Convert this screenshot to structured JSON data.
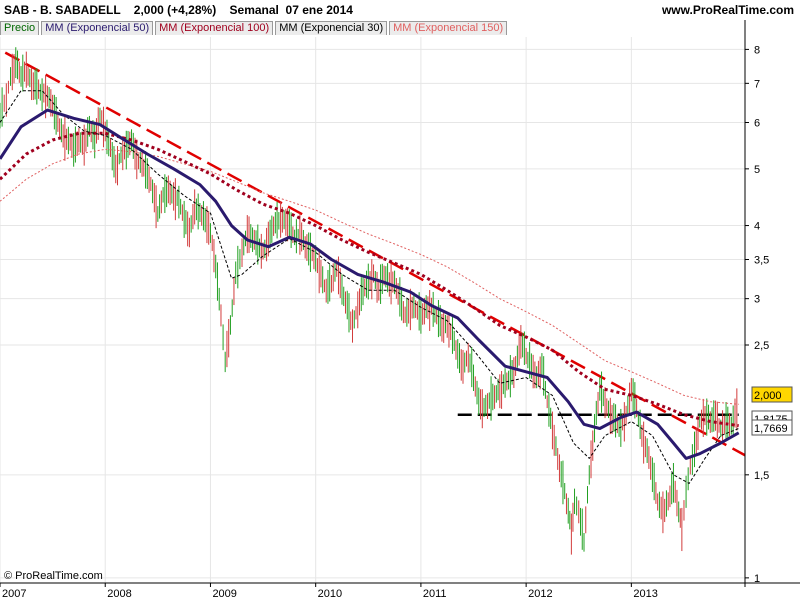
{
  "header": {
    "symbol": "SAB - B. SABADELL",
    "price_change": "2,000 (+4,28%)",
    "period_date": "Semanal  07 ene 2014",
    "site": "www.ProRealTime.com"
  },
  "footer": {
    "copyright": "© ProRealTime.com"
  },
  "price_flags": [
    {
      "label": "2,000",
      "value": 2.0,
      "bg": "#ffd700"
    },
    {
      "label": "1,7669",
      "value": 1.7669,
      "bg": "#ffffff"
    },
    {
      "label": "1,8175",
      "value": 1.8175,
      "bg": "#ffffff"
    }
  ],
  "chart_data": {
    "type": "line",
    "y_scale": "log",
    "ylim": [
      0.98,
      8.4
    ],
    "xlim": [
      2007.0,
      2014.08
    ],
    "grid": true,
    "y_ticks": [
      {
        "value": 8,
        "label": "8"
      },
      {
        "value": 7,
        "label": "7"
      },
      {
        "value": 6,
        "label": "6"
      },
      {
        "value": 5,
        "label": "5"
      },
      {
        "value": 4,
        "label": "4"
      },
      {
        "value": 3.5,
        "label": "3,5"
      },
      {
        "value": 3,
        "label": "3"
      },
      {
        "value": 2.5,
        "label": "2,5"
      },
      {
        "value": 1.5,
        "label": "1,5"
      },
      {
        "value": 1,
        "label": "1"
      }
    ],
    "x_ticks": [
      {
        "value": 2007,
        "label": "2007"
      },
      {
        "value": 2008,
        "label": "2008"
      },
      {
        "value": 2009,
        "label": "2009"
      },
      {
        "value": 2010,
        "label": "2010"
      },
      {
        "value": 2011,
        "label": "2011"
      },
      {
        "value": 2012,
        "label": "2012"
      },
      {
        "value": 2013,
        "label": "2013"
      }
    ],
    "legend": [
      {
        "label": "Precio",
        "color": "#006600"
      },
      {
        "label": "MM (Exponencial 50)",
        "color": "#2a1a6e"
      },
      {
        "label": "MM (Exponencial 100)",
        "color": "#a0001e"
      },
      {
        "label": "MM (Exponencial 30)",
        "color": "#000000"
      },
      {
        "label": "MM (Exponencial 150)",
        "color": "#e06060"
      }
    ],
    "price_closes": [
      [
        2007.0,
        6.2
      ],
      [
        2007.06,
        6.6
      ],
      [
        2007.1,
        7.2
      ],
      [
        2007.15,
        7.6
      ],
      [
        2007.2,
        7.2
      ],
      [
        2007.25,
        7.4
      ],
      [
        2007.3,
        7.0
      ],
      [
        2007.35,
        6.9
      ],
      [
        2007.4,
        6.7
      ],
      [
        2007.45,
        6.7
      ],
      [
        2007.5,
        6.4
      ],
      [
        2007.55,
        6.0
      ],
      [
        2007.6,
        5.7
      ],
      [
        2007.65,
        5.6
      ],
      [
        2007.7,
        5.4
      ],
      [
        2007.75,
        5.6
      ],
      [
        2007.8,
        5.5
      ],
      [
        2007.85,
        5.9
      ],
      [
        2007.9,
        5.6
      ],
      [
        2007.95,
        6.2
      ],
      [
        2008.0,
        5.8
      ],
      [
        2008.05,
        5.4
      ],
      [
        2008.1,
        5.0
      ],
      [
        2008.15,
        5.3
      ],
      [
        2008.2,
        5.4
      ],
      [
        2008.25,
        5.6
      ],
      [
        2008.3,
        5.2
      ],
      [
        2008.35,
        5.1
      ],
      [
        2008.4,
        4.9
      ],
      [
        2008.45,
        4.6
      ],
      [
        2008.5,
        4.2
      ],
      [
        2008.55,
        4.5
      ],
      [
        2008.6,
        4.6
      ],
      [
        2008.65,
        4.5
      ],
      [
        2008.7,
        4.4
      ],
      [
        2008.75,
        4.1
      ],
      [
        2008.8,
        3.9
      ],
      [
        2008.85,
        4.3
      ],
      [
        2008.9,
        4.2
      ],
      [
        2008.95,
        4.1
      ],
      [
        2009.0,
        3.9
      ],
      [
        2009.05,
        3.4
      ],
      [
        2009.1,
        2.8
      ],
      [
        2009.14,
        2.35
      ],
      [
        2009.19,
        2.7
      ],
      [
        2009.24,
        3.3
      ],
      [
        2009.3,
        3.6
      ],
      [
        2009.35,
        3.9
      ],
      [
        2009.4,
        3.8
      ],
      [
        2009.45,
        3.7
      ],
      [
        2009.5,
        3.6
      ],
      [
        2009.55,
        3.8
      ],
      [
        2009.6,
        4.0
      ],
      [
        2009.65,
        4.1
      ],
      [
        2009.7,
        4.1
      ],
      [
        2009.75,
        4.0
      ],
      [
        2009.8,
        3.8
      ],
      [
        2009.85,
        3.9
      ],
      [
        2009.9,
        3.7
      ],
      [
        2009.95,
        3.6
      ],
      [
        2010.0,
        3.5
      ],
      [
        2010.05,
        3.3
      ],
      [
        2010.1,
        3.1
      ],
      [
        2010.15,
        3.2
      ],
      [
        2010.2,
        3.4
      ],
      [
        2010.25,
        3.1
      ],
      [
        2010.3,
        2.9
      ],
      [
        2010.35,
        2.7
      ],
      [
        2010.4,
        2.9
      ],
      [
        2010.45,
        3.1
      ],
      [
        2010.5,
        3.2
      ],
      [
        2010.55,
        3.3
      ],
      [
        2010.6,
        3.1
      ],
      [
        2010.65,
        3.3
      ],
      [
        2010.7,
        3.2
      ],
      [
        2010.75,
        3.2
      ],
      [
        2010.8,
        3.0
      ],
      [
        2010.85,
        2.8
      ],
      [
        2010.9,
        2.9
      ],
      [
        2010.95,
        2.9
      ],
      [
        2011.0,
        2.8
      ],
      [
        2011.05,
        2.9
      ],
      [
        2011.1,
        2.9
      ],
      [
        2011.15,
        2.8
      ],
      [
        2011.2,
        2.7
      ],
      [
        2011.25,
        2.7
      ],
      [
        2011.3,
        2.6
      ],
      [
        2011.35,
        2.4
      ],
      [
        2011.4,
        2.3
      ],
      [
        2011.45,
        2.4
      ],
      [
        2011.5,
        2.2
      ],
      [
        2011.55,
        2.0
      ],
      [
        2011.6,
        1.95
      ],
      [
        2011.65,
        2.0
      ],
      [
        2011.7,
        2.05
      ],
      [
        2011.75,
        2.1
      ],
      [
        2011.8,
        2.15
      ],
      [
        2011.85,
        2.2
      ],
      [
        2011.9,
        2.3
      ],
      [
        2011.95,
        2.55
      ],
      [
        2012.0,
        2.4
      ],
      [
        2012.05,
        2.3
      ],
      [
        2012.1,
        2.2
      ],
      [
        2012.15,
        2.3
      ],
      [
        2012.2,
        2.0
      ],
      [
        2012.25,
        1.8
      ],
      [
        2012.3,
        1.6
      ],
      [
        2012.35,
        1.45
      ],
      [
        2012.4,
        1.3
      ],
      [
        2012.43,
        1.2
      ],
      [
        2012.46,
        1.35
      ],
      [
        2012.5,
        1.3
      ],
      [
        2012.55,
        1.15
      ],
      [
        2012.6,
        1.5
      ],
      [
        2012.65,
        1.8
      ],
      [
        2012.7,
        2.1
      ],
      [
        2012.75,
        2.0
      ],
      [
        2012.8,
        1.9
      ],
      [
        2012.85,
        1.85
      ],
      [
        2012.9,
        1.8
      ],
      [
        2012.95,
        1.9
      ],
      [
        2013.0,
        2.1
      ],
      [
        2013.05,
        1.95
      ],
      [
        2013.1,
        1.75
      ],
      [
        2013.15,
        1.65
      ],
      [
        2013.2,
        1.5
      ],
      [
        2013.25,
        1.35
      ],
      [
        2013.3,
        1.3
      ],
      [
        2013.35,
        1.35
      ],
      [
        2013.4,
        1.45
      ],
      [
        2013.45,
        1.3
      ],
      [
        2013.48,
        1.22
      ],
      [
        2013.52,
        1.4
      ],
      [
        2013.56,
        1.55
      ],
      [
        2013.6,
        1.65
      ],
      [
        2013.65,
        1.85
      ],
      [
        2013.7,
        1.9
      ],
      [
        2013.75,
        1.85
      ],
      [
        2013.8,
        1.9
      ],
      [
        2013.85,
        1.8
      ],
      [
        2013.9,
        1.85
      ],
      [
        2013.95,
        1.82
      ],
      [
        2014.02,
        2.0
      ]
    ],
    "series": [
      {
        "name": "MM (Exponencial 30)",
        "color": "#000000",
        "style": "dashed-thin",
        "points": [
          [
            2007.0,
            6.0
          ],
          [
            2007.2,
            6.8
          ],
          [
            2007.4,
            6.8
          ],
          [
            2007.6,
            6.2
          ],
          [
            2007.8,
            5.8
          ],
          [
            2008.0,
            5.7
          ],
          [
            2008.25,
            5.4
          ],
          [
            2008.5,
            4.9
          ],
          [
            2008.75,
            4.5
          ],
          [
            2009.0,
            4.2
          ],
          [
            2009.12,
            3.6
          ],
          [
            2009.2,
            3.25
          ],
          [
            2009.3,
            3.3
          ],
          [
            2009.5,
            3.55
          ],
          [
            2009.75,
            3.8
          ],
          [
            2010.0,
            3.6
          ],
          [
            2010.25,
            3.3
          ],
          [
            2010.5,
            3.1
          ],
          [
            2010.75,
            3.1
          ],
          [
            2011.0,
            2.9
          ],
          [
            2011.25,
            2.75
          ],
          [
            2011.5,
            2.45
          ],
          [
            2011.75,
            2.15
          ],
          [
            2012.0,
            2.2
          ],
          [
            2012.25,
            2.05
          ],
          [
            2012.45,
            1.7
          ],
          [
            2012.6,
            1.6
          ],
          [
            2012.75,
            1.75
          ],
          [
            2013.0,
            1.85
          ],
          [
            2013.2,
            1.75
          ],
          [
            2013.4,
            1.5
          ],
          [
            2013.55,
            1.45
          ],
          [
            2013.7,
            1.6
          ],
          [
            2013.85,
            1.75
          ],
          [
            2014.02,
            1.8
          ]
        ]
      },
      {
        "name": "MM (Exponencial 50)",
        "color": "#2a1a6e",
        "style": "solid-thick",
        "points": [
          [
            2007.0,
            5.2
          ],
          [
            2007.2,
            5.9
          ],
          [
            2007.45,
            6.3
          ],
          [
            2007.7,
            6.1
          ],
          [
            2007.95,
            5.95
          ],
          [
            2008.15,
            5.65
          ],
          [
            2008.4,
            5.3
          ],
          [
            2008.65,
            5.0
          ],
          [
            2008.9,
            4.7
          ],
          [
            2009.05,
            4.4
          ],
          [
            2009.2,
            4.0
          ],
          [
            2009.35,
            3.78
          ],
          [
            2009.55,
            3.68
          ],
          [
            2009.75,
            3.82
          ],
          [
            2009.95,
            3.72
          ],
          [
            2010.15,
            3.5
          ],
          [
            2010.4,
            3.3
          ],
          [
            2010.65,
            3.2
          ],
          [
            2010.9,
            3.08
          ],
          [
            2011.1,
            2.92
          ],
          [
            2011.35,
            2.78
          ],
          [
            2011.55,
            2.55
          ],
          [
            2011.8,
            2.3
          ],
          [
            2012.0,
            2.25
          ],
          [
            2012.2,
            2.2
          ],
          [
            2012.4,
            2.0
          ],
          [
            2012.55,
            1.83
          ],
          [
            2012.7,
            1.8
          ],
          [
            2012.9,
            1.88
          ],
          [
            2013.05,
            1.92
          ],
          [
            2013.25,
            1.83
          ],
          [
            2013.4,
            1.7
          ],
          [
            2013.52,
            1.6
          ],
          [
            2013.65,
            1.63
          ],
          [
            2013.85,
            1.7
          ],
          [
            2014.02,
            1.77
          ]
        ]
      },
      {
        "name": "MM (Exponencial 100)",
        "color": "#a0001e",
        "style": "dotted-thick",
        "points": [
          [
            2007.0,
            4.8
          ],
          [
            2007.25,
            5.3
          ],
          [
            2007.5,
            5.6
          ],
          [
            2007.75,
            5.75
          ],
          [
            2008.0,
            5.75
          ],
          [
            2008.25,
            5.6
          ],
          [
            2008.5,
            5.4
          ],
          [
            2008.75,
            5.15
          ],
          [
            2009.0,
            4.9
          ],
          [
            2009.25,
            4.6
          ],
          [
            2009.5,
            4.35
          ],
          [
            2009.75,
            4.2
          ],
          [
            2010.0,
            4.0
          ],
          [
            2010.25,
            3.78
          ],
          [
            2010.5,
            3.6
          ],
          [
            2010.75,
            3.45
          ],
          [
            2011.0,
            3.3
          ],
          [
            2011.25,
            3.1
          ],
          [
            2011.5,
            2.9
          ],
          [
            2011.75,
            2.7
          ],
          [
            2012.0,
            2.58
          ],
          [
            2012.25,
            2.45
          ],
          [
            2012.5,
            2.25
          ],
          [
            2012.75,
            2.1
          ],
          [
            2013.0,
            2.05
          ],
          [
            2013.25,
            1.98
          ],
          [
            2013.5,
            1.9
          ],
          [
            2013.75,
            1.85
          ],
          [
            2014.02,
            1.82
          ]
        ]
      },
      {
        "name": "MM (Exponencial 150)",
        "color": "#e06060",
        "style": "dotted-thin",
        "points": [
          [
            2007.0,
            4.4
          ],
          [
            2007.25,
            4.8
          ],
          [
            2007.5,
            5.1
          ],
          [
            2007.75,
            5.3
          ],
          [
            2008.0,
            5.4
          ],
          [
            2008.25,
            5.35
          ],
          [
            2008.5,
            5.25
          ],
          [
            2008.75,
            5.1
          ],
          [
            2009.0,
            4.95
          ],
          [
            2009.25,
            4.75
          ],
          [
            2009.5,
            4.55
          ],
          [
            2009.75,
            4.4
          ],
          [
            2010.0,
            4.25
          ],
          [
            2010.25,
            4.05
          ],
          [
            2010.5,
            3.87
          ],
          [
            2010.75,
            3.72
          ],
          [
            2011.0,
            3.57
          ],
          [
            2011.25,
            3.4
          ],
          [
            2011.5,
            3.2
          ],
          [
            2011.75,
            3.0
          ],
          [
            2012.0,
            2.85
          ],
          [
            2012.25,
            2.7
          ],
          [
            2012.5,
            2.52
          ],
          [
            2012.75,
            2.35
          ],
          [
            2013.0,
            2.25
          ],
          [
            2013.25,
            2.15
          ],
          [
            2013.5,
            2.05
          ],
          [
            2013.75,
            2.0
          ],
          [
            2014.02,
            1.98
          ]
        ]
      }
    ],
    "annotations": [
      {
        "name": "trendline-descending",
        "color": "#e00000",
        "style": "long-dash",
        "from": [
          2007.05,
          7.9
        ],
        "to": [
          2014.08,
          1.62
        ]
      },
      {
        "name": "support-line-horizontal",
        "color": "#000000",
        "style": "long-dash",
        "from": [
          2011.35,
          1.9
        ],
        "to": [
          2014.02,
          1.9
        ]
      }
    ]
  }
}
